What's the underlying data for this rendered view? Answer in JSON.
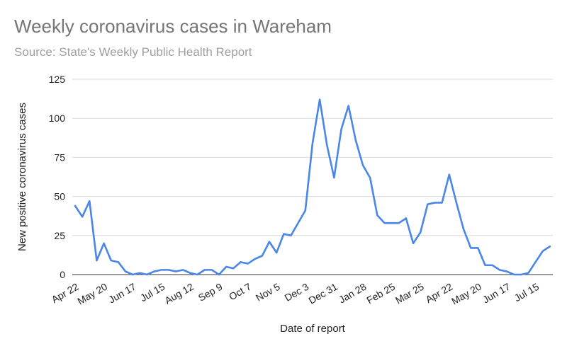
{
  "chart_data": {
    "type": "line",
    "title": "Weekly coronavirus cases in Wareham",
    "subtitle": "Source: State's Weekly Public Health Report",
    "xlabel": "Date of report",
    "ylabel": "New positive coronavirus cases",
    "ylim": [
      0,
      125
    ],
    "yticks": [
      "0",
      "25",
      "50",
      "75",
      "100",
      "125"
    ],
    "xtick_labels": [
      "Apr 22",
      "May 20",
      "Jun 17",
      "Jul 15",
      "Aug 12",
      "Sep 9",
      "Oct 7",
      "Nov 5",
      "Dec 3",
      "Dec 31",
      "Jan 28",
      "Feb 25",
      "Mar 25",
      "Apr 22",
      "May 20",
      "Jun 17",
      "Jul 15"
    ],
    "grid": true,
    "legend": "none",
    "line_color": "#4a86e8",
    "series": [
      {
        "values": [
          44,
          37,
          47,
          9,
          20,
          9,
          8,
          2,
          0,
          1,
          0,
          2,
          3,
          3,
          2,
          3,
          1,
          0,
          3,
          3,
          0,
          5,
          4,
          8,
          7,
          10,
          12,
          21,
          14,
          26,
          25,
          33,
          41,
          84,
          112,
          83,
          62,
          93,
          108,
          86,
          70,
          62,
          38,
          33,
          33,
          33,
          36,
          20,
          27,
          45,
          46,
          46,
          64,
          46,
          29,
          17,
          17,
          6,
          6,
          3,
          2,
          0,
          0,
          1,
          8,
          15,
          18
        ]
      }
    ]
  }
}
